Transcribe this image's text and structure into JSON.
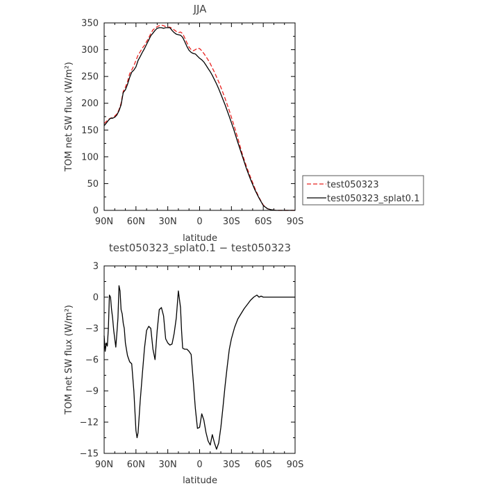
{
  "chart_data": [
    {
      "type": "line",
      "title": "JJA",
      "xlabel": "latitude",
      "ylabel": "TOM net SW flux (W/m²)",
      "x_tick_labels": [
        "90N",
        "60N",
        "30N",
        "0",
        "30S",
        "60S",
        "90S"
      ],
      "x_tick_values": [
        90,
        60,
        30,
        0,
        -30,
        -60,
        -90
      ],
      "xlim": [
        90,
        -90
      ],
      "ylim": [
        0,
        350
      ],
      "y_ticks": [
        0,
        50,
        100,
        150,
        200,
        250,
        300,
        350
      ],
      "legend_position": "outside-right",
      "series": [
        {
          "name": "test050323",
          "color": "#e8201e",
          "dash": "dashed",
          "x": [
            90,
            88,
            86,
            84,
            82,
            80,
            78,
            76,
            74,
            72,
            70,
            68,
            66,
            64,
            62,
            60,
            58,
            56,
            54,
            52,
            50,
            48,
            46,
            44,
            42,
            40,
            38,
            36,
            34,
            32,
            30,
            28,
            26,
            24,
            22,
            20,
            18,
            16,
            14,
            12,
            10,
            8,
            6,
            4,
            2,
            0,
            -2,
            -4,
            -6,
            -8,
            -10,
            -12,
            -14,
            -16,
            -18,
            -20,
            -24,
            -28,
            -32,
            -36,
            -40,
            -44,
            -48,
            -52,
            -56,
            -60,
            -64,
            -68,
            -72,
            -76,
            -80,
            -84,
            -88,
            -90
          ],
          "y": [
            162,
            166,
            170,
            172,
            173,
            176,
            180,
            188,
            200,
            222,
            230,
            240,
            255,
            262,
            270,
            280,
            290,
            296,
            303,
            308,
            315,
            322,
            330,
            337,
            340,
            343,
            345,
            346,
            345,
            343,
            342,
            342,
            340,
            337,
            334,
            332,
            333,
            330,
            322,
            313,
            305,
            300,
            298,
            300,
            303,
            302,
            298,
            293,
            287,
            281,
            274,
            266,
            258,
            249,
            240,
            230,
            209,
            186,
            161,
            135,
            107,
            83,
            62,
            42,
            24,
            10,
            3,
            1,
            0,
            0,
            0,
            0,
            0,
            0
          ]
        },
        {
          "name": "test050323_splat0.1",
          "color": "#000000",
          "dash": "solid",
          "x": [
            90,
            88,
            86,
            84,
            82,
            80,
            78,
            76,
            74,
            72,
            70,
            68,
            66,
            64,
            62,
            60,
            58,
            56,
            54,
            52,
            50,
            48,
            46,
            44,
            42,
            40,
            38,
            36,
            34,
            32,
            30,
            28,
            26,
            24,
            22,
            20,
            18,
            16,
            14,
            12,
            10,
            8,
            6,
            4,
            2,
            0,
            -2,
            -4,
            -6,
            -8,
            -10,
            -12,
            -14,
            -16,
            -18,
            -20,
            -24,
            -28,
            -32,
            -36,
            -40,
            -44,
            -48,
            -52,
            -56,
            -60,
            -64,
            -68,
            -72,
            -76,
            -80,
            -84,
            -88,
            -90
          ],
          "y": [
            158,
            163,
            168,
            172,
            172,
            174,
            178,
            186,
            197,
            220,
            225,
            235,
            248,
            258,
            262,
            268,
            280,
            287,
            295,
            302,
            310,
            318,
            326,
            331,
            336,
            340,
            341,
            341,
            340,
            341,
            341,
            341,
            336,
            332,
            329,
            328,
            327,
            323,
            315,
            306,
            299,
            295,
            293,
            292,
            288,
            284,
            281,
            277,
            271,
            265,
            259,
            252,
            244,
            236,
            227,
            217,
            197,
            175,
            152,
            127,
            103,
            79,
            58,
            39,
            23,
            9,
            3,
            1,
            0,
            0,
            0,
            0,
            0,
            0
          ]
        }
      ]
    },
    {
      "type": "line",
      "title": "test050323_splat0.1 − test050323",
      "xlabel": "latitude",
      "ylabel": "TOM net SW flux (W/m²)",
      "x_tick_labels": [
        "90N",
        "60N",
        "30N",
        "0",
        "30S",
        "60S",
        "90S"
      ],
      "x_tick_values": [
        90,
        60,
        30,
        0,
        -30,
        -60,
        -90
      ],
      "xlim": [
        90,
        -90
      ],
      "ylim": [
        -15,
        3
      ],
      "y_ticks": [
        3,
        0,
        -3,
        -6,
        -9,
        -12,
        -15
      ],
      "y_tick_labels": [
        "3",
        "0",
        "−3",
        "−6",
        "−9",
        "−12",
        "−15"
      ],
      "series": [
        {
          "name": "",
          "color": "#000000",
          "dash": "solid",
          "x": [
            90,
            89,
            88,
            87,
            86,
            85,
            84,
            83,
            82,
            81,
            80,
            79,
            78,
            77,
            76,
            75,
            74,
            73,
            72,
            71,
            70,
            68,
            66,
            64,
            62,
            60,
            59,
            58,
            56,
            54,
            52,
            50,
            48,
            46,
            44,
            42,
            40,
            38,
            36,
            34,
            32,
            30,
            28,
            26,
            24,
            22,
            20,
            18,
            17,
            16,
            14,
            12,
            10,
            8,
            6,
            4,
            2,
            0,
            -2,
            -4,
            -6,
            -8,
            -10,
            -12,
            -14,
            -16,
            -18,
            -20,
            -22,
            -24,
            -26,
            -28,
            -30,
            -33,
            -36,
            -39,
            -42,
            -45,
            -48,
            -51,
            -54,
            -56,
            -58,
            -60,
            -62,
            -64,
            -66,
            -70,
            -75,
            -80,
            -85,
            -90
          ],
          "y": [
            -3.7,
            -5.2,
            -4.4,
            -4.7,
            -3.0,
            0.2,
            0.0,
            -1.2,
            -2.0,
            -3.2,
            -4.0,
            -4.8,
            -3.5,
            -2.0,
            1.1,
            0.6,
            -1.2,
            -1.6,
            -2.5,
            -3.0,
            -4.4,
            -5.6,
            -6.2,
            -6.4,
            -9.0,
            -12.8,
            -13.5,
            -13.0,
            -10.0,
            -7.4,
            -4.9,
            -3.2,
            -2.8,
            -3.0,
            -5.0,
            -6.0,
            -3.2,
            -1.2,
            -1.0,
            -1.8,
            -4.0,
            -4.4,
            -4.6,
            -4.5,
            -3.5,
            -2.0,
            0.6,
            -1.0,
            -3.2,
            -4.9,
            -5.0,
            -5.0,
            -5.2,
            -5.5,
            -8.0,
            -10.7,
            -12.6,
            -12.5,
            -11.2,
            -11.8,
            -13.0,
            -13.8,
            -14.2,
            -13.2,
            -14.0,
            -14.6,
            -14.0,
            -12.5,
            -10.6,
            -8.5,
            -6.7,
            -5.0,
            -4.0,
            -2.9,
            -2.1,
            -1.6,
            -1.1,
            -0.7,
            -0.3,
            0.0,
            0.2,
            0.0,
            0.1,
            0.0,
            0.0,
            0.0,
            0.0,
            0.0,
            0.0,
            0.0,
            0.0,
            0.0
          ]
        }
      ]
    }
  ]
}
